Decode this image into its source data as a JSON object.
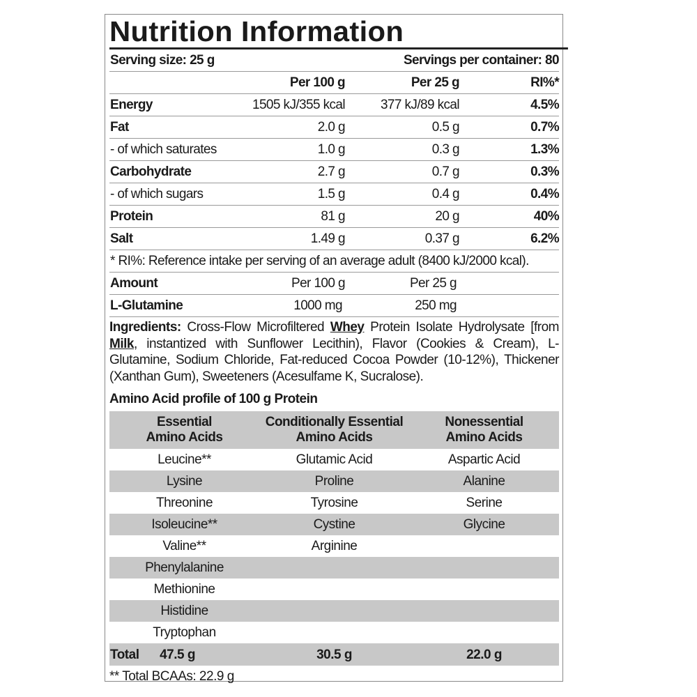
{
  "title": "Nutrition Information",
  "serving_size": "Serving size: 25 g",
  "servings_per_container": "Servings per container: 80",
  "headers": {
    "per100": "Per 100 g",
    "per25": "Per 25 g",
    "ri": "RI%*"
  },
  "nutrients": [
    {
      "name": "Energy",
      "per100": "1505 kJ/355 kcal",
      "per25": "377 kJ/89 kcal",
      "ri": "4.5%",
      "bold": true
    },
    {
      "name": "Fat",
      "per100": "2.0 g",
      "per25": "0.5 g",
      "ri": "0.7%",
      "bold": true
    },
    {
      "name": "- of which saturates",
      "per100": "1.0 g",
      "per25": "0.3 g",
      "ri": "1.3%",
      "bold": false
    },
    {
      "name": "Carbohydrate",
      "per100": "2.7 g",
      "per25": "0.7 g",
      "ri": "0.3%",
      "bold": true
    },
    {
      "name": "- of which sugars",
      "per100": "1.5 g",
      "per25": "0.4 g",
      "ri": "0.4%",
      "bold": false
    },
    {
      "name": "Protein",
      "per100": "81 g",
      "per25": "20 g",
      "ri": "40%",
      "bold": true
    },
    {
      "name": "Salt",
      "per100": "1.49 g",
      "per25": "0.37 g",
      "ri": "6.2%",
      "bold": true
    }
  ],
  "ri_note": "* RI%: Reference intake per serving of an average adult (8400 kJ/2000 kcal).",
  "amount": {
    "label": "Amount",
    "per100": "Per 100 g",
    "per25": "Per 25 g"
  },
  "glutamine": {
    "name": "L-Glutamine",
    "per100": "1000 mg",
    "per25": "250 mg"
  },
  "ingredients": {
    "label": "Ingredients:",
    "t1": " Cross-Flow Microfiltered ",
    "a1": "Whey",
    "t2": " Protein Isolate Hydrolysate [from ",
    "a2": "Milk",
    "t3": ", instantized with Sunflower Lecithin), Flavor (Cookies & Cream), L-Glutamine, Sodium Chloride, Fat-reduced Cocoa Powder (10-12%), Thickener (Xanthan Gum), Sweeteners (Acesulfame K, Sucralose)."
  },
  "amino_title": "Amino Acid profile of 100 g Protein",
  "amino_headers": [
    [
      "Essential",
      "Amino Acids"
    ],
    [
      "Conditionally Essential",
      "Amino Acids"
    ],
    [
      "Nonessential",
      "Amino Acids"
    ]
  ],
  "amino_rows": [
    [
      "Leucine**",
      "Glutamic Acid",
      "Aspartic Acid"
    ],
    [
      "Lysine",
      "Proline",
      "Alanine"
    ],
    [
      "Threonine",
      "Tyrosine",
      "Serine"
    ],
    [
      "Isoleucine**",
      "Cystine",
      "Glycine"
    ],
    [
      "Valine**",
      "Arginine",
      ""
    ],
    [
      "Phenylalanine",
      "",
      ""
    ],
    [
      "Methionine",
      "",
      ""
    ],
    [
      "Histidine",
      "",
      ""
    ],
    [
      "Tryptophan",
      "",
      ""
    ]
  ],
  "total": {
    "label": "Total",
    "essential": "47.5 g",
    "conditional": "30.5 g",
    "nonessential": "22.0 g"
  },
  "bcaa_note": "** Total BCAAs: 22.9 g",
  "colors": {
    "stripe": "#c8c8c8",
    "text": "#1a1a1a"
  }
}
